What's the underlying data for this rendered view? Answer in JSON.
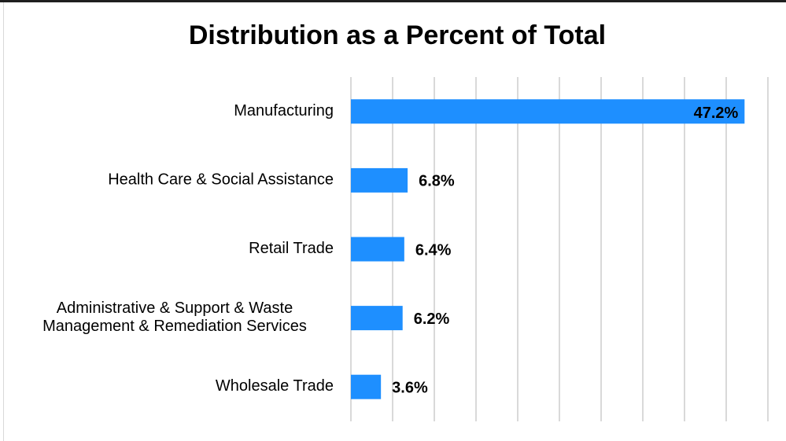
{
  "chart_data": {
    "type": "bar",
    "orientation": "horizontal",
    "title": "Distribution as a Percent of Total",
    "xlabel": "",
    "ylabel": "",
    "categories": [
      [
        "Manufacturing"
      ],
      [
        "Health Care & Social Assistance"
      ],
      [
        "Retail Trade"
      ],
      [
        "Administrative & Support & Waste",
        "Management & Remediation Services"
      ],
      [
        "Wholesale Trade"
      ]
    ],
    "values": [
      47.2,
      6.8,
      6.4,
      6.2,
      3.6
    ],
    "value_labels": [
      "47.2%",
      "6.8%",
      "6.4%",
      "6.2%",
      "3.6%"
    ],
    "xlim": [
      0,
      50
    ],
    "grid": true,
    "legend": "none",
    "bar_color": "#1e8fff",
    "grid_color": "#d9d9d9"
  }
}
